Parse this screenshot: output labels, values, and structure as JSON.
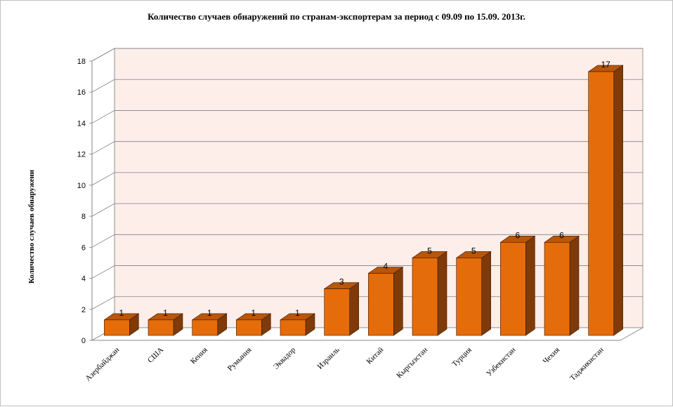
{
  "chart_data": {
    "type": "bar",
    "title": "Количество случаев обнаружений по странам-экспортерам за период с 09.09 по 15.09. 2013г.",
    "ylabel": "Количество случаев обнаружени",
    "xlabel": "",
    "categories": [
      "Азербайджан",
      "США",
      "Кения",
      "Румыния",
      "Эквадор",
      "Израиль",
      "Китай",
      "Кыргызстан",
      "Турция",
      "Узбекистан",
      "Чехия",
      "Таджикистан"
    ],
    "values": [
      1,
      1,
      1,
      1,
      1,
      3,
      4,
      5,
      5,
      6,
      6,
      17
    ],
    "data_labels": [
      "1",
      "1",
      "1",
      "1",
      "1",
      "3",
      "4",
      "5",
      "5",
      "6",
      "6",
      "17"
    ],
    "ylim": [
      0,
      18
    ],
    "yticks": [
      "0",
      "2",
      "4",
      "6",
      "8",
      "10",
      "12",
      "14",
      "16",
      "18"
    ],
    "grid": true,
    "legend": "none",
    "bar_color": "#e46c0a",
    "bar_side_color": "#7f3a07",
    "bar_top_color": "#b8560a",
    "wall_color": "#fdeeea"
  }
}
